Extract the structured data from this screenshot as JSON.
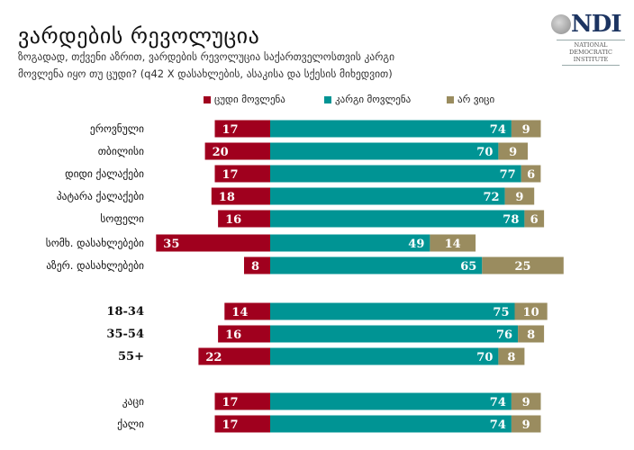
{
  "header": {
    "title": "ვარდების რევოლუცია",
    "subtitle_line1": "ზოგადად, თქვენი აზრით, ვარდების რევოლუცია საქართველოსთვის კარგი",
    "subtitle_line2": "მოვლენა იყო თუ ცუდი? (q42 X დასახლების, ასაკისა და სქესის მიხედვით)"
  },
  "logo": {
    "acronym": "NDI",
    "line1": "NATIONAL",
    "line2": "DEMOCRATIC",
    "line3": "INSTITUTE",
    "icon": "globe-icon"
  },
  "colors": {
    "bad": "#a0001e",
    "good": "#009494",
    "dont_know": "#9a8c5f"
  },
  "chart_data": {
    "type": "bar",
    "orientation": "horizontal-diverging-stacked",
    "title": "ვარდების რევოლუცია",
    "legend_position": "top",
    "series": [
      {
        "name": "ცუდი მოვლენა",
        "key": "bad",
        "values": [
          17,
          20,
          17,
          18,
          16,
          35,
          8,
          14,
          16,
          22,
          17,
          17
        ]
      },
      {
        "name": "კარგი მოვლენა",
        "key": "good",
        "values": [
          74,
          70,
          77,
          72,
          78,
          49,
          65,
          75,
          76,
          70,
          74,
          74
        ]
      },
      {
        "name": "არ ვიცი",
        "key": "dont_know",
        "values": [
          9,
          9,
          6,
          9,
          6,
          14,
          25,
          10,
          8,
          8,
          9,
          9
        ]
      }
    ],
    "categories": [
      "ეროვნული",
      "თბილისი",
      "დიდი ქალაქები",
      "პატარა ქალაქები",
      "სოფელი",
      "სომხ. დასახლებები",
      "აზერ. დასახლებები",
      "18-34",
      "35-54",
      "55+",
      "კაცი",
      "ქალი"
    ],
    "groups": [
      {
        "name": "settlement",
        "count": 7
      },
      {
        "name": "age",
        "count": 3
      },
      {
        "name": "gender",
        "count": 2
      }
    ],
    "grid": false,
    "unit": "%"
  }
}
